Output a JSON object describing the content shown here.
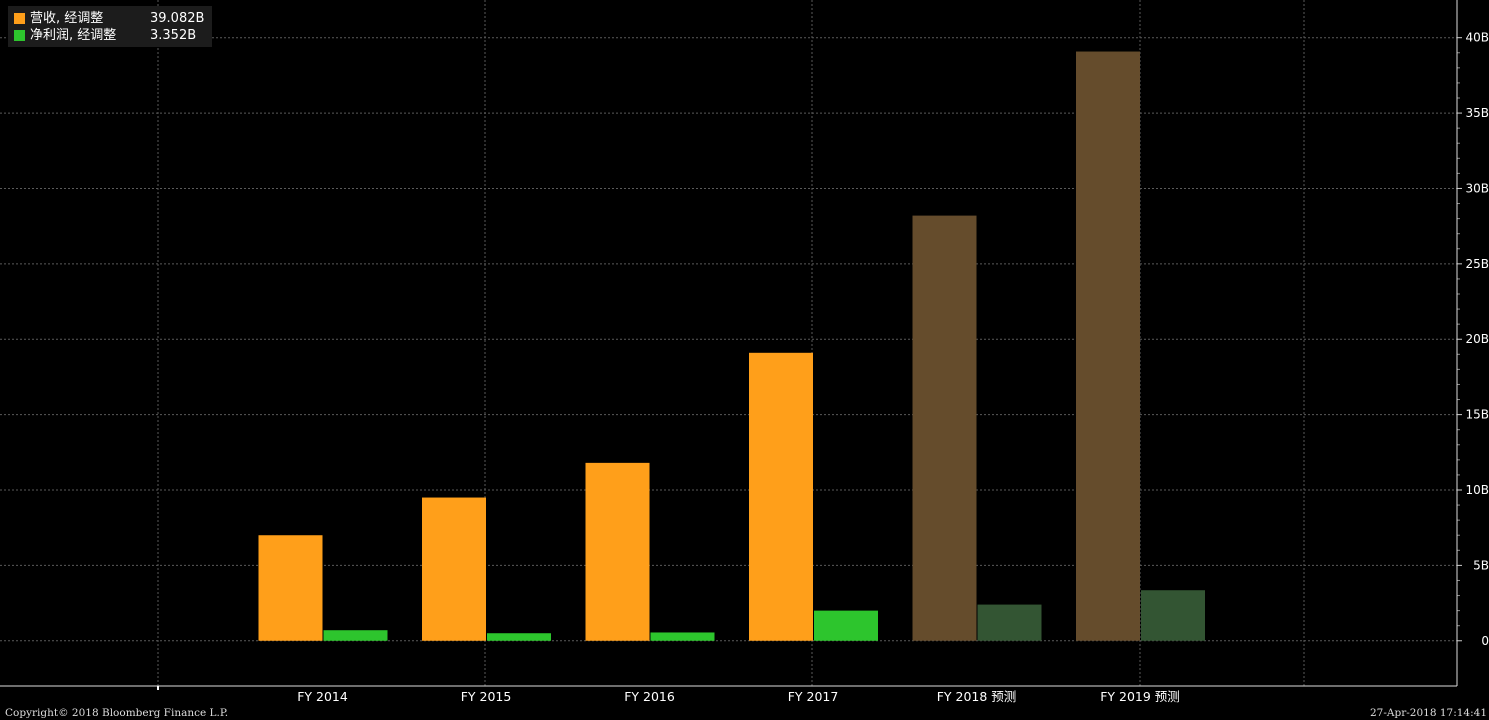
{
  "legend": [
    {
      "name": "营收, 经调整",
      "value": "39.082B",
      "color": "#ff9f1a"
    },
    {
      "name": "净利润, 经调整",
      "value": "3.352B",
      "color": "#2dc52d"
    }
  ],
  "footer": {
    "copyright": "Copyright© 2018 Bloomberg Finance L.P.",
    "timestamp": "27-Apr-2018 17:14:41"
  },
  "colors": {
    "revenue": "#ff9f1a",
    "profit": "#2dc52d",
    "revenue_forecast": "#654c2c",
    "profit_forecast": "#335533",
    "grid": "#5a5a5a",
    "background": "#000000"
  },
  "chart_data": {
    "type": "bar",
    "categories": [
      "FY 2014",
      "FY 2015",
      "FY 2016",
      "FY 2017",
      "FY 2018 预测",
      "FY 2019 预测"
    ],
    "forecast": [
      false,
      false,
      false,
      false,
      true,
      true
    ],
    "series": [
      {
        "name": "营收, 经调整",
        "values": [
          7.0,
          9.5,
          11.8,
          19.1,
          28.2,
          39.082
        ]
      },
      {
        "name": "净利润, 经调整",
        "values": [
          0.7,
          0.5,
          0.55,
          2.0,
          2.4,
          3.352
        ]
      }
    ],
    "yticks": [
      "0",
      "5B",
      "10B",
      "15B",
      "20B",
      "25B",
      "30B",
      "35B",
      "40B"
    ],
    "ylim": [
      -3,
      42.5
    ],
    "grid": true,
    "legend_position": "top-left",
    "yaxis_side": "right"
  }
}
